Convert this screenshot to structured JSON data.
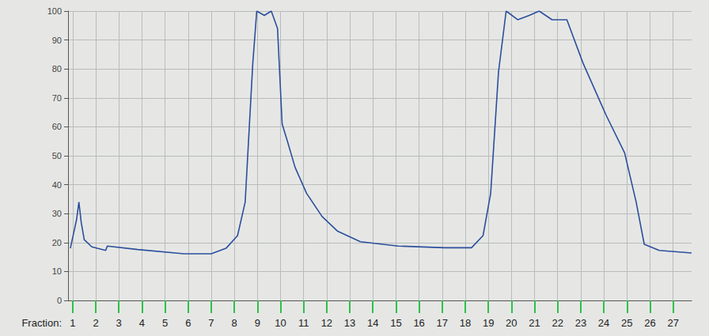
{
  "chart_data": {
    "type": "line",
    "x_label": "Fraction:",
    "x": [
      0.9,
      1.17,
      1.27,
      1.37,
      1.5,
      1.83,
      2.43,
      2.5,
      3.82,
      5.82,
      7.0,
      7.64,
      8.14,
      8.47,
      8.8,
      8.97,
      9.3,
      9.6,
      9.87,
      10.07,
      10.3,
      10.63,
      11.13,
      11.8,
      12.46,
      13.46,
      15.1,
      17.1,
      18.27,
      18.77,
      19.1,
      19.44,
      19.77,
      20.27,
      20.77,
      21.2,
      21.76,
      22.4,
      23.1,
      24.1,
      24.9,
      25.4,
      25.75,
      26.4,
      27.8
    ],
    "values": [
      18,
      28,
      34,
      27,
      21,
      18.5,
      17.3,
      18.8,
      17.6,
      16.1,
      16.1,
      18,
      22.4,
      34,
      82,
      100,
      98.5,
      100,
      94,
      61,
      55,
      46,
      37,
      29,
      24,
      20.3,
      18.8,
      18.2,
      18.2,
      22.4,
      37,
      79,
      100,
      97,
      98.5,
      100,
      97,
      97,
      82,
      64,
      51,
      34,
      19.4,
      17.3,
      16.4
    ],
    "color": "#2b4f9c",
    "xlim": [
      0.8,
      27.8
    ],
    "xticks": [
      1,
      2,
      3,
      4,
      5,
      6,
      7,
      8,
      9,
      10,
      11,
      12,
      13,
      14,
      15,
      16,
      17,
      18,
      19,
      20,
      21,
      22,
      23,
      24,
      25,
      26,
      27
    ],
    "ylim": [
      0,
      100
    ],
    "yticks": [
      0,
      10,
      20,
      30,
      40,
      50,
      60,
      70,
      80,
      90,
      100
    ],
    "grid": true
  }
}
